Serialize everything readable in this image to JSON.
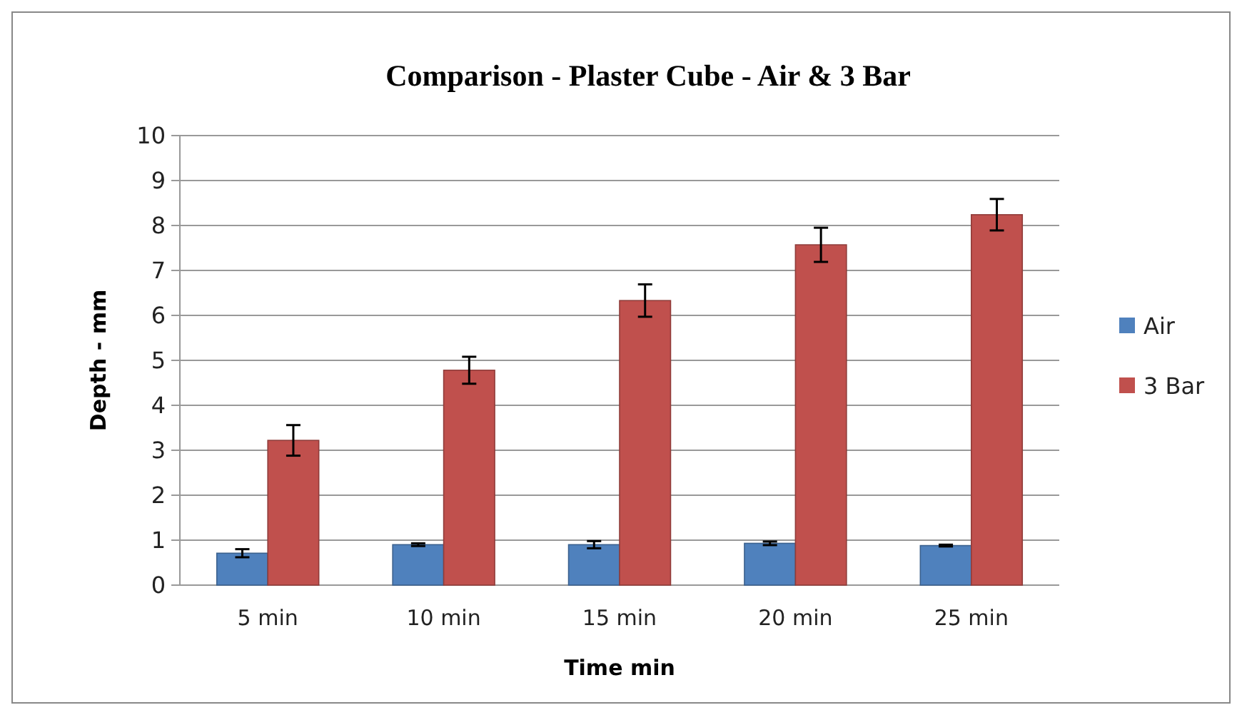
{
  "chart_data": {
    "type": "bar",
    "title": "Comparison - Plaster Cube - Air & 3 Bar",
    "xlabel": "Time min",
    "ylabel": "Depth - mm",
    "categories": [
      "5 min",
      "10 min",
      "15 min",
      "20 min",
      "25 min"
    ],
    "series": [
      {
        "name": "Air",
        "color": "#4f81bd",
        "values": [
          0.71,
          0.9,
          0.9,
          0.93,
          0.88
        ],
        "errors": [
          0.09,
          0.03,
          0.08,
          0.04,
          0.02
        ]
      },
      {
        "name": "3 Bar",
        "color": "#c0504d",
        "values": [
          3.22,
          4.78,
          6.33,
          7.57,
          8.24
        ],
        "errors": [
          0.34,
          0.3,
          0.36,
          0.38,
          0.35
        ]
      }
    ],
    "ylim": [
      0,
      10
    ],
    "yticks": [
      0,
      1,
      2,
      3,
      4,
      5,
      6,
      7,
      8,
      9,
      10
    ],
    "grid": "y",
    "legend": "right"
  }
}
